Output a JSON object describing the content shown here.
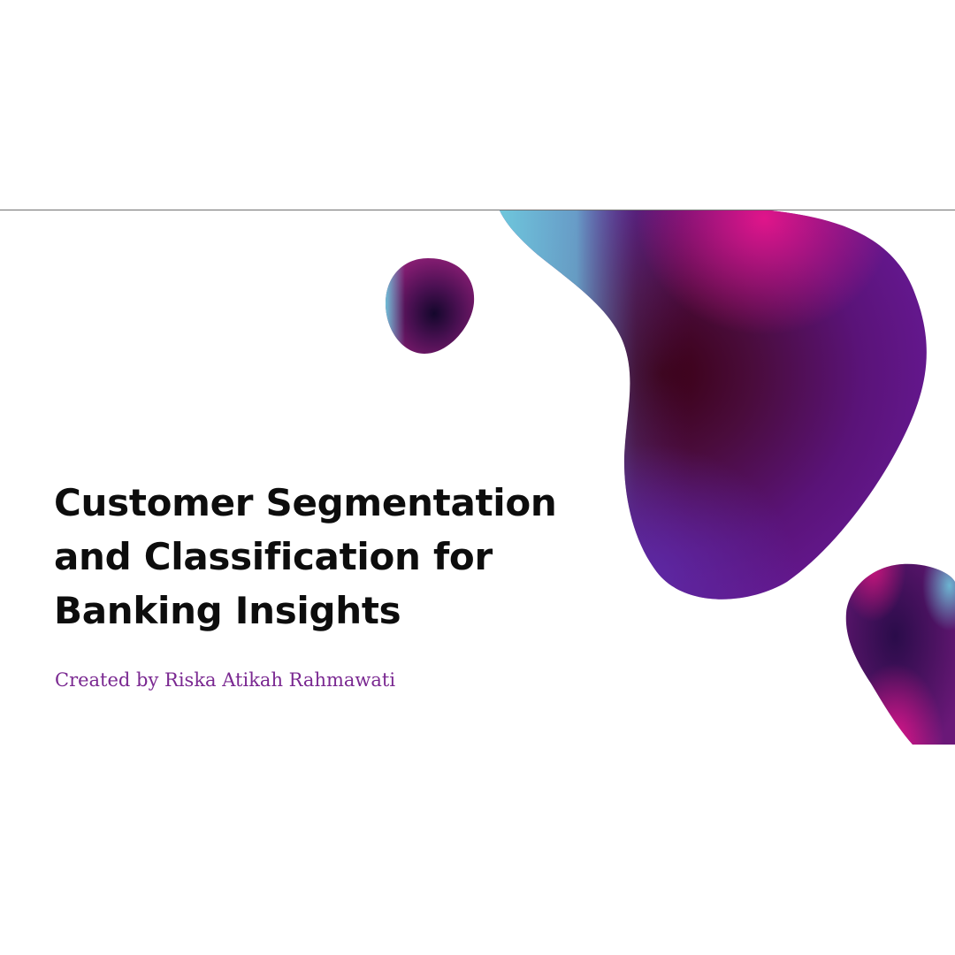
{
  "slide": {
    "title_lines": [
      "Customer Segmentation",
      "and Classification for",
      "Banking Insights"
    ],
    "byline": "Created by Riska Atikah Rahmawati"
  },
  "colors": {
    "title": "#0d0d0d",
    "byline": "#7a2891",
    "blob_deep": "#3a0012",
    "blob_purple": "#5a1a8a",
    "blob_magenta": "#e0158a",
    "blob_cyan": "#6ec7dc"
  }
}
